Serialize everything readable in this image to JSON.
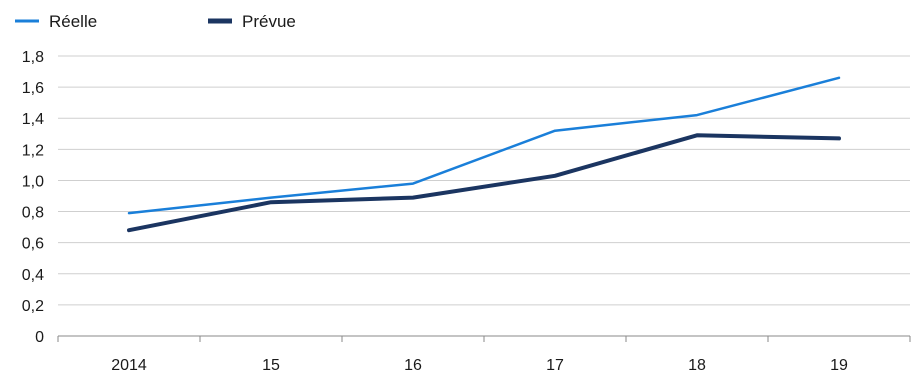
{
  "chart_data": {
    "type": "line",
    "categories": [
      "2014",
      "15",
      "16",
      "17",
      "18",
      "19"
    ],
    "series": [
      {
        "name": "Réelle",
        "values": [
          0.79,
          0.89,
          0.98,
          1.32,
          1.42,
          1.66
        ],
        "color": "#1a7fd9"
      },
      {
        "name": "Prévue",
        "values": [
          0.68,
          0.86,
          0.89,
          1.03,
          1.29,
          1.27
        ],
        "color": "#1b3561"
      }
    ],
    "y_ticks": [
      "0",
      "0,2",
      "0,4",
      "0,6",
      "0,8",
      "1,0",
      "1,2",
      "1,4",
      "1,6",
      "1,8"
    ],
    "ylim": [
      0,
      1.8
    ],
    "grid": true,
    "legend_position": "top-left"
  }
}
